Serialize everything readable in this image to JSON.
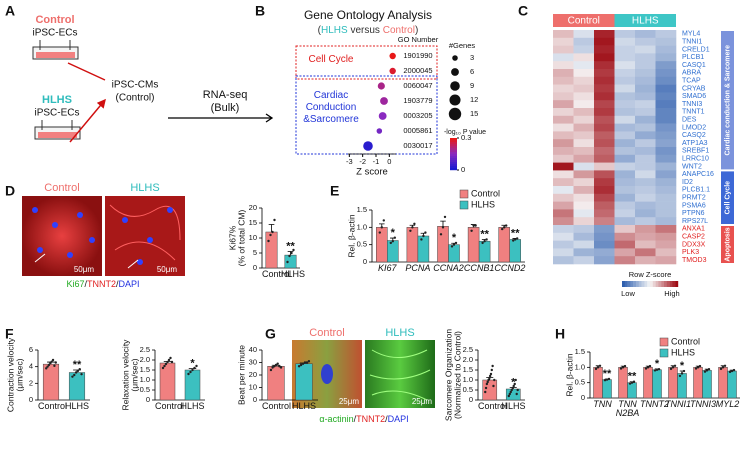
{
  "panel_a": {
    "label": "A",
    "control": "Control",
    "control_cells": "iPSC-ECs",
    "hlhs": "HLHS",
    "hlhs_cells": "iPSC-ECs",
    "cms": "iPSC-CMs",
    "cms_source": "(Control)",
    "method": "RNA-seq",
    "method_detail": "(Bulk)"
  },
  "panel_b": {
    "label": "B",
    "chart": {
      "type": "dot",
      "title": "Gene Ontology Analysis",
      "subtitle_parts": [
        "(",
        "HLHS",
        " versus ",
        "Control",
        ")"
      ],
      "category_header": "GO Number",
      "categories": [
        "1901990",
        "2000045",
        "0060047",
        "1903779",
        "0003205",
        "0005861",
        "0030017"
      ],
      "values": [
        0.25,
        0.25,
        -0.6,
        -0.4,
        -0.5,
        -0.75,
        -1.6
      ],
      "sizes": [
        4,
        4,
        5,
        6,
        6,
        3,
        9
      ],
      "color_values": [
        0.3,
        0.28,
        0.2,
        0.18,
        0.15,
        0.12,
        0.02
      ],
      "groups": [
        {
          "name": "Cell Cycle",
          "color": "#e02020",
          "count": 2
        },
        {
          "name": "Cardiac Conduction &Sarcomere",
          "color": "#2236d8",
          "count": 5
        }
      ],
      "xlabel": "Z score",
      "xlim": [
        -3.1,
        0.5
      ],
      "xticks": [
        -3,
        -2,
        -1,
        0
      ],
      "size_legend": {
        "title": "#Genes",
        "values": [
          3,
          6,
          9,
          12,
          15
        ]
      },
      "colorbar": {
        "title": "-log₁₀ P value",
        "clim": [
          0,
          0.3
        ],
        "ticks": [
          0.3,
          0
        ]
      }
    }
  },
  "panel_c": {
    "label": "C",
    "chart": {
      "type": "heatmap",
      "column_groups": [
        {
          "name": "Control",
          "color": "#ee6f6c",
          "columns": 3
        },
        {
          "name": "HLHS",
          "color": "#3ec6c6",
          "columns": 3
        }
      ],
      "rows": [
        "MYL4",
        "TNNI1",
        "CRELD1",
        "PLCB1",
        "CASQ1",
        "ABRA",
        "TCAP",
        "CRYAB",
        "SMAD6",
        "TNNI3",
        "TNNT1",
        "DES",
        "LMOD2",
        "CASQ2",
        "ATP1A3",
        "SREBF1",
        "LRRC10",
        "WNT2",
        "ANAPC16",
        "ID2",
        "PLCB1.1",
        "PRMT2",
        "PSMA6",
        "PTPN6",
        "RPS27L",
        "ANXA1",
        "CASP2",
        "DDX3X",
        "PLK3",
        "TMOD3"
      ],
      "values": [
        [
          0.5,
          -0.3,
          1.8,
          -0.6,
          -0.8,
          -0.6
        ],
        [
          0.3,
          -0.6,
          1.9,
          -0.4,
          -0.6,
          -0.7
        ],
        [
          0.4,
          -0.5,
          1.8,
          -0.5,
          -0.4,
          -0.8
        ],
        [
          -0.3,
          0.2,
          1.9,
          -0.5,
          -0.6,
          -0.9
        ],
        [
          0.2,
          -0.2,
          1.7,
          -0.3,
          -0.6,
          -1.2
        ],
        [
          0.6,
          0.1,
          1.6,
          -0.5,
          -0.7,
          -1.3
        ],
        [
          0.5,
          0.3,
          1.7,
          -0.6,
          -0.8,
          -1.4
        ],
        [
          0.3,
          0.4,
          1.6,
          -0.4,
          -0.9,
          -1.6
        ],
        [
          0.4,
          0.2,
          1.7,
          -0.7,
          -0.8,
          -1.5
        ],
        [
          0.7,
          0.1,
          1.5,
          -0.6,
          -0.5,
          -1.6
        ],
        [
          0.3,
          0.5,
          1.6,
          -0.7,
          -0.6,
          -1.5
        ],
        [
          0.6,
          0.3,
          1.4,
          -0.4,
          -0.9,
          -1.5
        ],
        [
          0.2,
          0.6,
          1.5,
          -0.8,
          -0.7,
          -1.3
        ],
        [
          0.5,
          0.4,
          1.3,
          -0.6,
          -1.0,
          -1.2
        ],
        [
          0.8,
          0.2,
          1.4,
          -0.9,
          -0.6,
          -1.1
        ],
        [
          0.6,
          0.5,
          1.2,
          -0.7,
          -0.8,
          -1.3
        ],
        [
          0.4,
          0.7,
          1.3,
          -1.0,
          -0.6,
          -1.2
        ],
        [
          1.9,
          -0.3,
          0.4,
          -0.5,
          -0.6,
          -0.9
        ],
        [
          0.2,
          0.8,
          1.4,
          -0.9,
          -0.4,
          -1.1
        ],
        [
          0.5,
          0.3,
          1.6,
          -0.8,
          -0.7,
          -0.9
        ],
        [
          -0.2,
          0.6,
          1.7,
          -0.7,
          -0.6,
          -0.8
        ],
        [
          0.4,
          0.2,
          1.5,
          -0.9,
          -0.5,
          -0.7
        ],
        [
          0.7,
          0.1,
          1.3,
          -0.6,
          -0.8,
          -0.7
        ],
        [
          1.1,
          -0.2,
          1.2,
          -0.5,
          -0.9,
          -0.7
        ],
        [
          0.9,
          0.3,
          1.0,
          -0.8,
          -0.6,
          -0.8
        ],
        [
          -0.5,
          -0.6,
          -1.2,
          0.4,
          0.8,
          1.1
        ],
        [
          -0.3,
          -0.8,
          -1.3,
          0.9,
          0.7,
          0.8
        ],
        [
          -0.6,
          -0.4,
          -1.4,
          1.2,
          0.5,
          0.7
        ],
        [
          -0.4,
          -0.9,
          -1.0,
          0.7,
          1.1,
          0.5
        ],
        [
          -0.7,
          -0.5,
          -1.1,
          1.0,
          0.6,
          0.7
        ]
      ],
      "row_groups": [
        {
          "name": "Cardiac conduction & Sarcomere",
          "color": "#7b93dc",
          "label_color": "#2f6fd0",
          "count": 18
        },
        {
          "name": "Cell Cycle",
          "color": "#3d68d6",
          "label_color": "#2f6fd0",
          "count": 7
        },
        {
          "name": "Apoptosis",
          "color": "#e8514f",
          "label_color": "#e02020",
          "count": 5
        }
      ],
      "zlim": [
        -2,
        2
      ],
      "colorbar": {
        "title": "Row Z-score",
        "low": "Low",
        "high": "High"
      }
    }
  },
  "panel_d": {
    "label": "D",
    "image_labels": [
      "Control",
      "HLHS"
    ],
    "scale_bars": [
      "50μm",
      "50μm"
    ],
    "stains": [
      "Ki67",
      "/",
      "TNNT2",
      "/",
      "DAPI"
    ],
    "chart": {
      "type": "bar",
      "ylabel": [
        "Ki67%",
        "(% of total CM)"
      ],
      "ylim": [
        0,
        20
      ],
      "yticks": [
        0,
        5,
        10,
        15,
        20
      ],
      "categories": [
        "Control",
        "HLHS"
      ],
      "series": [
        {
          "colors": [
            "#f08080",
            "#3cc0c0"
          ],
          "values": [
            12,
            4.3
          ],
          "errors": [
            2.5,
            1.2
          ],
          "points": [
            [
              9,
              11,
              12,
              16
            ],
            [
              2,
              4,
              5,
              6
            ]
          ],
          "significance": [
            null,
            "**"
          ]
        }
      ]
    }
  },
  "panel_e": {
    "label": "E",
    "chart": {
      "type": "bar",
      "ylabel": [
        "Rel. β-actin"
      ],
      "ylim": [
        0,
        1.5
      ],
      "yticks": [
        0,
        0.5,
        {
          "value": 1,
          "label": "1.0"
        },
        1.5
      ],
      "categories": [
        "KI67",
        "PCNA",
        "CCNA2",
        "CCNB1",
        "CCND2"
      ],
      "series": [
        {
          "name": "Control",
          "color": "#f08080",
          "values": [
            1.0,
            1.0,
            1.03,
            1.0,
            1.0
          ],
          "errors": [
            0.1,
            0.06,
            0.15,
            0.08,
            0.06
          ],
          "points": [
            [
              0.85,
              1.0,
              1.2
            ],
            [
              0.9,
              1.0,
              1.1
            ],
            [
              0.8,
              1.0,
              1.3
            ],
            [
              0.9,
              1.05,
              1.05
            ],
            [
              0.95,
              1.0,
              1.05
            ]
          ]
        },
        {
          "name": "HLHS",
          "color": "#3cc0c0",
          "values": [
            0.62,
            0.75,
            0.5,
            0.6,
            0.65
          ],
          "errors": [
            0.07,
            0.08,
            0.04,
            0.05,
            0.03
          ],
          "points": [
            [
              0.55,
              0.6,
              0.7
            ],
            [
              0.65,
              0.75,
              0.85
            ],
            [
              0.45,
              0.5,
              0.55
            ],
            [
              0.55,
              0.6,
              0.65
            ],
            [
              0.62,
              0.65,
              0.68
            ]
          ],
          "significance": [
            "*",
            null,
            "*",
            "**",
            "**"
          ]
        }
      ]
    }
  },
  "panel_f": {
    "label": "F",
    "charts": [
      {
        "type": "bar",
        "ylabel": [
          "Contraction velocity",
          "(μm/sec)"
        ],
        "ylim": [
          0,
          6
        ],
        "yticks": [
          0,
          2,
          4,
          6
        ],
        "categories": [
          "Control",
          "HLHS"
        ],
        "series": [
          {
            "colors": [
              "#f08080",
              "#3cc0c0"
            ],
            "values": [
              4.3,
              3.3
            ],
            "errors": [
              0.25,
              0.3
            ],
            "points": [
              [
                3.8,
                4.0,
                4.2,
                4.4,
                4.6,
                4.8,
                4.1,
                4.5
              ],
              [
                2.8,
                3.0,
                3.3,
                3.5,
                3.7,
                3.1
              ]
            ],
            "significance": [
              null,
              "**"
            ]
          }
        ]
      },
      {
        "type": "bar",
        "ylabel": [
          "Relaxation velocity",
          "(μm/sec)"
        ],
        "ylim": [
          0,
          2.5
        ],
        "yticks": [
          0,
          0.5,
          {
            "value": 1,
            "label": "1.0"
          },
          1.5,
          {
            "value": 2,
            "label": "2.0"
          },
          2.5
        ],
        "categories": [
          "Control",
          "HLHS"
        ],
        "series": [
          {
            "colors": [
              "#f08080",
              "#3cc0c0"
            ],
            "values": [
              1.85,
              1.5
            ],
            "errors": [
              0.08,
              0.07
            ],
            "points": [
              [
                1.6,
                1.7,
                1.8,
                1.9,
                2.0,
                2.1,
                1.9
              ],
              [
                1.3,
                1.4,
                1.5,
                1.6,
                1.7
              ]
            ],
            "significance": [
              null,
              "*"
            ]
          }
        ]
      },
      {
        "type": "bar",
        "ylabel": [
          "Beat per minute"
        ],
        "ylim": [
          0,
          40
        ],
        "yticks": [
          0,
          10,
          20,
          30,
          40
        ],
        "categories": [
          "Control",
          "HLHS"
        ],
        "series": [
          {
            "colors": [
              "#f08080",
              "#3cc0c0"
            ],
            "values": [
              27,
              29
            ],
            "errors": [
              0.8,
              0.6
            ],
            "points": [
              [
                24,
                26,
                27,
                28,
                29,
                27,
                26
              ],
              [
                27,
                28,
                29,
                30,
                30,
                31
              ]
            ]
          }
        ]
      }
    ]
  },
  "panel_g": {
    "label": "G",
    "image_labels": [
      "Control",
      "HLHS"
    ],
    "scale_bars": [
      "25μm",
      "25μm"
    ],
    "stains": [
      "α-actinin",
      "/",
      "TNNT2",
      "/",
      "DAPI"
    ],
    "chart": {
      "type": "bar",
      "ylabel": [
        "Sarcomere Organization",
        "(Normalized to Control)"
      ],
      "ylim": [
        0,
        2.5
      ],
      "yticks": [
        0,
        0.5,
        {
          "value": 1,
          "label": "1.0"
        },
        1.5,
        {
          "value": 2,
          "label": "2.0"
        },
        2.5
      ],
      "categories": [
        "Control",
        "HLHS"
      ],
      "series": [
        {
          "colors": [
            "#f08080",
            "#3cc0c0"
          ],
          "values": [
            1.0,
            0.55
          ],
          "errors": [
            0.12,
            0.08
          ],
          "points": [
            [
              0.4,
              0.6,
              0.8,
              0.9,
              1.0,
              1.1,
              1.2,
              1.3,
              1.5,
              1.7,
              0.7,
              1.0
            ],
            [
              0.2,
              0.3,
              0.4,
              0.5,
              0.6,
              0.7,
              0.8,
              1.0,
              0.3,
              0.5
            ]
          ],
          "significance": [
            null,
            "*"
          ]
        }
      ]
    }
  },
  "panel_h": {
    "label": "H",
    "chart": {
      "type": "bar",
      "ylabel": [
        "Rel. β-actin"
      ],
      "ylim": [
        0,
        1.5
      ],
      "yticks": [
        0,
        0.5,
        {
          "value": 1,
          "label": "1.0"
        },
        1.5
      ],
      "categories": [
        "TNN",
        "TNN N2BA",
        "TNNT2",
        "TNNI1",
        "TNNI3",
        "MYL2"
      ],
      "series": [
        {
          "name": "Control",
          "color": "#f08080",
          "values": [
            1.0,
            1.0,
            1.0,
            1.0,
            1.0,
            1.0
          ],
          "errors": [
            0.05,
            0.04,
            0.04,
            0.05,
            0.04,
            0.05
          ],
          "points": [
            [
              0.95,
              1.0,
              1.05
            ],
            [
              0.96,
              1.0,
              1.04
            ],
            [
              0.96,
              1.0,
              1.04
            ],
            [
              0.95,
              1.0,
              1.05
            ],
            [
              0.96,
              1.0,
              1.04
            ],
            [
              0.95,
              1.0,
              1.05
            ]
          ]
        },
        {
          "name": "HLHS",
          "color": "#3cc0c0",
          "values": [
            0.6,
            0.5,
            0.92,
            0.8,
            0.9,
            0.88
          ],
          "errors": [
            0.02,
            0.03,
            0.03,
            0.08,
            0.04,
            0.03
          ],
          "points": [
            [
              0.58,
              0.6,
              0.62
            ],
            [
              0.47,
              0.5,
              0.53
            ],
            [
              0.9,
              0.92,
              0.94
            ],
            [
              0.72,
              0.8,
              0.88
            ],
            [
              0.86,
              0.9,
              0.94
            ],
            [
              0.85,
              0.88,
              0.91
            ]
          ],
          "significance": [
            "**",
            "**",
            "*",
            "*",
            null,
            null
          ]
        }
      ]
    }
  }
}
